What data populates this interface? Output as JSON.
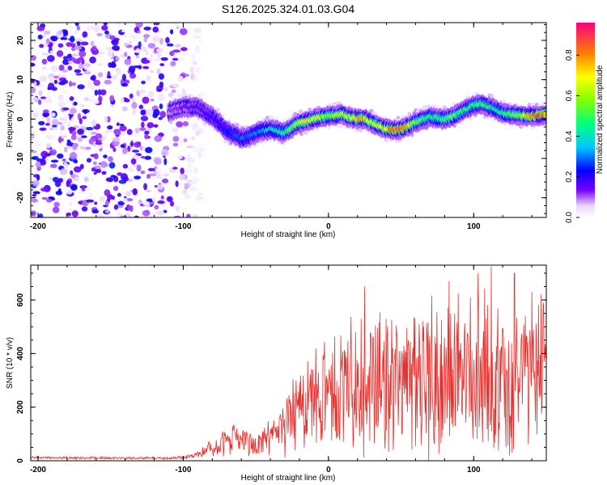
{
  "title": "S126.2025.324.01.03.G04",
  "chart_data": [
    {
      "type": "heatmap",
      "name": "spectrogram",
      "xlabel": "Height of straight line (km)",
      "ylabel": "Frequency (Hz)",
      "xlim": [
        -205,
        150
      ],
      "ylim": [
        -25,
        24.5
      ],
      "xticks": [
        -200,
        -100,
        0,
        100
      ],
      "yticks": [
        -20,
        -10,
        0,
        10,
        20
      ],
      "colorbar": {
        "label": "Normalized spectral amplitude",
        "range": [
          0,
          0.96
        ],
        "ticks": [
          0.0,
          0.2,
          0.4,
          0.6,
          0.8
        ],
        "tick_labels": [
          "0.0",
          "0.2",
          "0.4",
          "0.6",
          "0.8"
        ]
      },
      "ridge": {
        "x": [
          -110,
          -100,
          -90,
          -82,
          -75,
          -70,
          -65,
          -60,
          -55,
          -50,
          -45,
          -40,
          -35,
          -30,
          -25,
          -20,
          -15,
          -10,
          -5,
          0,
          5,
          10,
          15,
          20,
          25,
          30,
          35,
          40,
          45,
          50,
          55,
          60,
          65,
          70,
          75,
          80,
          85,
          90,
          95,
          100,
          105,
          110,
          115,
          120,
          125,
          130,
          135,
          140,
          145,
          150
        ],
        "freq": [
          2,
          3,
          3,
          1,
          -1,
          -3,
          -4,
          -5,
          -4.5,
          -3.5,
          -3,
          -2.5,
          -3,
          -3.5,
          -2,
          -1,
          -0.5,
          0,
          0.5,
          0.8,
          1,
          1.2,
          0.5,
          0,
          0.2,
          -1,
          -1.8,
          -2.5,
          -2.8,
          -2.5,
          -1.8,
          -0.8,
          0,
          0.5,
          0.3,
          0,
          0.5,
          1.5,
          2.5,
          3.5,
          3.8,
          3.2,
          2.5,
          1.5,
          1.2,
          1,
          0.8,
          0.8,
          1,
          1.2
        ],
        "amp": [
          0.12,
          0.15,
          0.18,
          0.2,
          0.22,
          0.26,
          0.28,
          0.32,
          0.3,
          0.34,
          0.36,
          0.4,
          0.45,
          0.5,
          0.6,
          0.7,
          0.75,
          0.72,
          0.68,
          0.62,
          0.66,
          0.7,
          0.68,
          0.82,
          0.8,
          0.7,
          0.72,
          0.78,
          0.9,
          0.92,
          0.76,
          0.6,
          0.55,
          0.5,
          0.52,
          0.55,
          0.6,
          0.55,
          0.5,
          0.52,
          0.55,
          0.5,
          0.45,
          0.5,
          0.55,
          0.62,
          0.7,
          0.9,
          0.92,
          0.85
        ]
      },
      "noise_region": {
        "x_from": -205,
        "x_to": -95,
        "amp_max": 0.25
      }
    },
    {
      "type": "line",
      "name": "snr",
      "xlabel": "Height of straight line (km)",
      "ylabel": "SNR (10 * v/v)",
      "xlim": [
        -205,
        150
      ],
      "ylim": [
        0,
        730
      ],
      "xticks": [
        -200,
        -100,
        0,
        100
      ],
      "yticks": [
        0,
        200,
        400,
        600
      ],
      "color": "#e8312e",
      "envelope": {
        "x": [
          -205,
          -150,
          -110,
          -95,
          -85,
          -75,
          -65,
          -60,
          -50,
          -40,
          -30,
          -20,
          -10,
          0,
          10,
          20,
          30,
          40,
          50,
          60,
          70,
          80,
          90,
          100,
          110,
          120,
          130,
          140,
          150
        ],
        "center": [
          12,
          10,
          10,
          15,
          35,
          60,
          90,
          70,
          55,
          90,
          150,
          200,
          230,
          240,
          250,
          280,
          300,
          280,
          260,
          290,
          310,
          320,
          330,
          330,
          320,
          300,
          300,
          320,
          400
        ],
        "spread": [
          6,
          6,
          6,
          10,
          25,
          50,
          80,
          60,
          50,
          90,
          140,
          190,
          230,
          250,
          280,
          320,
          330,
          300,
          290,
          320,
          340,
          360,
          350,
          340,
          360,
          320,
          300,
          320,
          250
        ]
      },
      "peaks": [
        [
          25,
          650
        ],
        [
          83,
          670
        ],
        [
          112,
          725
        ],
        [
          103,
          700
        ],
        [
          128,
          700
        ],
        [
          140,
          630
        ],
        [
          148,
          590
        ]
      ]
    }
  ]
}
